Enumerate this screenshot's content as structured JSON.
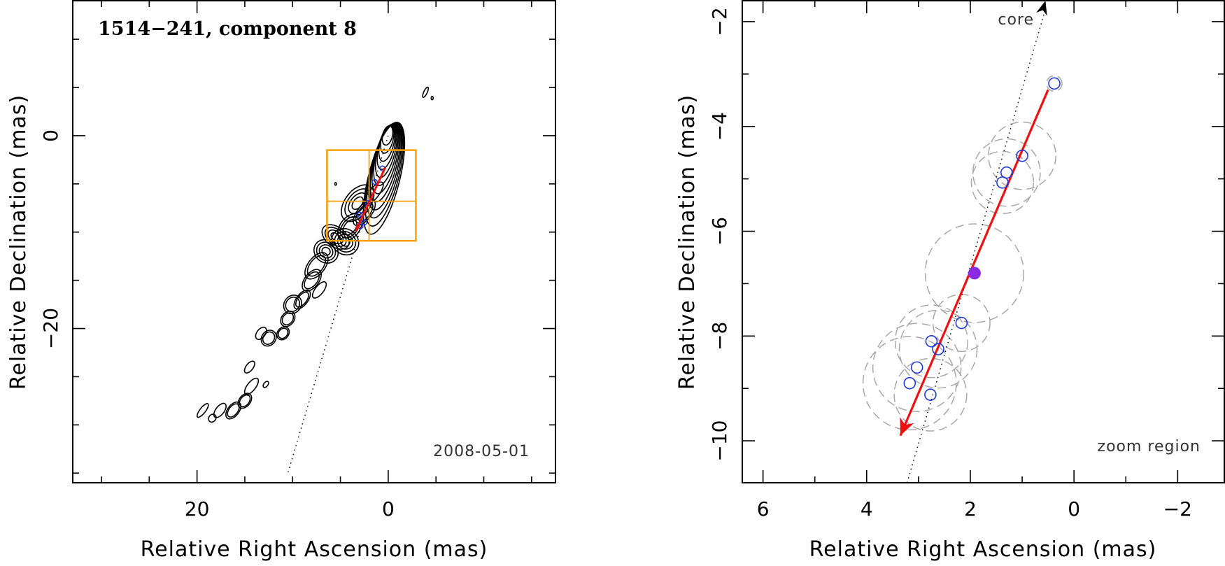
{
  "chart_data": [
    {
      "type": "contour",
      "panel": "left",
      "title": "1514−241, component 8",
      "date": "2008-05-01",
      "xlabel": "Relative Right Ascension (mas)",
      "ylabel": "Relative Declination (mas)",
      "xlim": [
        33,
        -17.5
      ],
      "ylim": [
        -36,
        14
      ],
      "xticks": [
        20,
        0
      ],
      "xtick_labels": [
        "20",
        "0"
      ],
      "yticks": [
        0,
        -20
      ],
      "ytick_labels": [
        "0",
        "−20"
      ],
      "minor_xticks": [
        30,
        25,
        15,
        10,
        5,
        -5,
        -10,
        -15
      ],
      "minor_yticks": [
        10,
        5,
        -5,
        -10,
        -15,
        -25,
        -30,
        -35
      ],
      "components": [
        {
          "x": 2.1,
          "y": -7.0
        },
        {
          "x": 0.6,
          "y": -3.4
        },
        {
          "x": 1.4,
          "y": -4.8
        },
        {
          "x": 3.0,
          "y": -8.2
        },
        {
          "x": 2.5,
          "y": -9.0
        },
        {
          "x": 2.9,
          "y": -9.4
        }
      ],
      "motion_arrow": {
        "x0": 0.3,
        "y0": -3.3,
        "x1": 3.4,
        "y1": -9.9
      },
      "core_line": {
        "x0": 0,
        "y0": 0,
        "x1": 10.5,
        "y1": -35
      },
      "zoom_box": {
        "x0": 6.4,
        "x1": -2.9,
        "y0": -1.5,
        "y1": -10.9,
        "cross_x": 2.0,
        "cross_y": -6.8
      }
    },
    {
      "type": "scatter",
      "panel": "right",
      "label_core": "core",
      "label_zoom": "zoom region",
      "xlabel": "Relative Right Ascension (mas)",
      "ylabel": "Relative Declination (mas)",
      "xlim": [
        6.4,
        -2.9
      ],
      "ylim": [
        -10.8,
        -1.6
      ],
      "xticks": [
        6,
        4,
        2,
        0,
        -2
      ],
      "xtick_labels": [
        "6",
        "4",
        "2",
        "0",
        "−2"
      ],
      "yticks": [
        -2,
        -4,
        -6,
        -8,
        -10
      ],
      "ytick_labels": [
        "−2",
        "−4",
        "−6",
        "−8",
        "−10"
      ],
      "minor_xticks": [
        5,
        3,
        1,
        -1
      ],
      "minor_yticks": [
        -3,
        -5,
        -7,
        -9
      ],
      "points": [
        {
          "x": 0.38,
          "y": -3.18,
          "ring": 0.15
        },
        {
          "x": 1.0,
          "y": -4.56,
          "ring": 0.65
        },
        {
          "x": 1.3,
          "y": -4.88,
          "ring": 0.65
        },
        {
          "x": 1.38,
          "y": -5.07,
          "ring": 0.6
        },
        {
          "x": 2.17,
          "y": -7.75,
          "ring": 0.55
        },
        {
          "x": 2.75,
          "y": -8.1,
          "ring": 0.7
        },
        {
          "x": 2.62,
          "y": -8.25,
          "ring": 0.75
        },
        {
          "x": 3.03,
          "y": -8.6,
          "ring": 0.85
        },
        {
          "x": 3.17,
          "y": -8.9,
          "ring": 0.9
        },
        {
          "x": 2.77,
          "y": -9.12,
          "ring": 0.7
        }
      ],
      "mean_position": {
        "x": 1.92,
        "y": -6.8,
        "ring": 0.95
      },
      "motion_arrow": {
        "x0": 0.5,
        "y0": -3.3,
        "x1": 3.35,
        "y1": -9.9
      },
      "core_line": {
        "x0": 0.55,
        "y0": -1.6,
        "x1": 3.22,
        "y1": -10.8
      }
    }
  ]
}
